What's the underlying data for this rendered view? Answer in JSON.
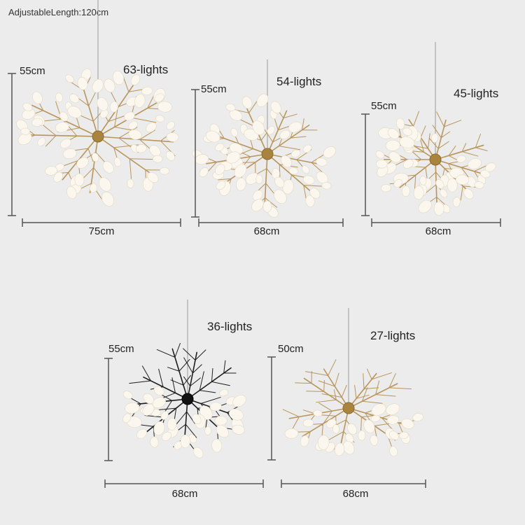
{
  "caption": "AdjustableLength:120cm",
  "colors": {
    "background": "#ececec",
    "gold": "#b8955a",
    "black": "#1e1e1e",
    "petal": "#fbf7ee",
    "dimension_line": "#555555"
  },
  "products": [
    {
      "id": "p63",
      "lights": "63-lights",
      "height": "55cm",
      "width": "75cm",
      "finish": "gold"
    },
    {
      "id": "p54",
      "lights": "54-lights",
      "height": "55cm",
      "width": "68cm",
      "finish": "gold"
    },
    {
      "id": "p45",
      "lights": "45-lights",
      "height": "55cm",
      "width": "68cm",
      "finish": "gold"
    },
    {
      "id": "p36",
      "lights": "36-lights",
      "height": "55cm",
      "width": "68cm",
      "finish": "black"
    },
    {
      "id": "p27",
      "lights": "27-lights",
      "height": "50cm",
      "width": "68cm",
      "finish": "gold"
    }
  ]
}
